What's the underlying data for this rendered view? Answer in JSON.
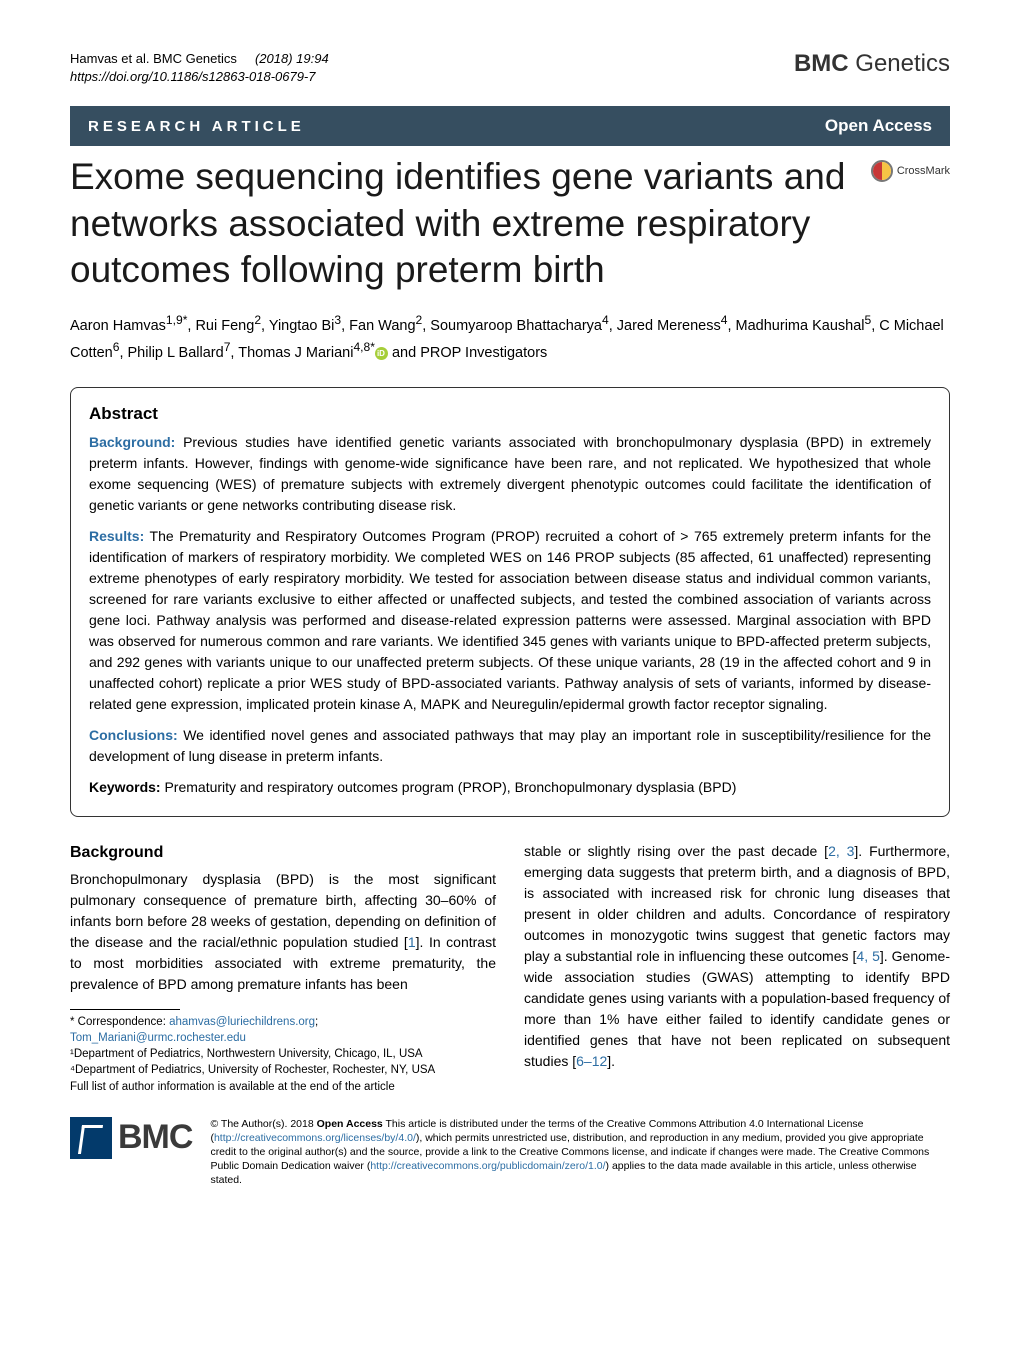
{
  "header": {
    "citation_authors": "Hamvas et al. BMC Genetics",
    "citation_year_vol": "(2018) 19:94",
    "doi": "https://doi.org/10.1186/s12863-018-0679-7",
    "journal_prefix": "BMC",
    "journal_name": "Genetics"
  },
  "article_type_bar": {
    "label": "RESEARCH ARTICLE",
    "open_access": "Open Access",
    "bar_bg": "#364e60",
    "bar_fg": "#ffffff"
  },
  "crossmark_label": "CrossMark",
  "title": "Exome sequencing identifies gene variants and networks associated with extreme respiratory outcomes following preterm birth",
  "authors_html": "Aaron Hamvas<sup>1,9*</sup>, Rui Feng<sup>2</sup>, Yingtao Bi<sup>3</sup>, Fan Wang<sup>2</sup>, Soumyaroop Bhattacharya<sup>4</sup>, Jared Mereness<sup>4</sup>, Madhurima Kaushal<sup>5</sup>, C Michael Cotten<sup>6</sup>, Philip L Ballard<sup>7</sup>, Thomas J Mariani<sup>4,8*</sup><span class=\"orcid\"></span> and PROP Investigators",
  "abstract": {
    "heading": "Abstract",
    "background_label": "Background:",
    "background": "Previous studies have identified genetic variants associated with bronchopulmonary dysplasia (BPD) in extremely preterm infants. However, findings with genome-wide significance have been rare, and not replicated. We hypothesized that whole exome sequencing (WES) of premature subjects with extremely divergent phenotypic outcomes could facilitate the identification of genetic variants or gene networks contributing disease risk.",
    "results_label": "Results:",
    "results": "The Prematurity and Respiratory Outcomes Program (PROP) recruited a cohort of > 765 extremely preterm infants for the identification of markers of respiratory morbidity. We completed WES on 146 PROP subjects (85 affected, 61 unaffected) representing extreme phenotypes of early respiratory morbidity. We tested for association between disease status and individual common variants, screened for rare variants exclusive to either affected or unaffected subjects, and tested the combined association of variants across gene loci. Pathway analysis was performed and disease-related expression patterns were assessed. Marginal association with BPD was observed for numerous common and rare variants. We identified 345 genes with variants unique to BPD-affected preterm subjects, and 292 genes with variants unique to our unaffected preterm subjects. Of these unique variants, 28 (19 in the affected cohort and 9 in unaffected cohort) replicate a prior WES study of BPD-associated variants. Pathway analysis of sets of variants, informed by disease-related gene expression, implicated protein kinase A, MAPK and Neuregulin/epidermal growth factor receptor signaling.",
    "conclusions_label": "Conclusions:",
    "conclusions": "We identified novel genes and associated pathways that may play an important role in susceptibility/resilience for the development of lung disease in preterm infants.",
    "keywords_label": "Keywords:",
    "keywords": "Prematurity and respiratory outcomes program (PROP), Bronchopulmonary dysplasia (BPD)"
  },
  "background_section": {
    "heading": "Background",
    "col1": "Bronchopulmonary dysplasia (BPD) is the most significant pulmonary consequence of premature birth, affecting 30–60% of infants born before 28 weeks of gestation, depending on definition of the disease and the racial/ethnic population studied [1]. In contrast to most morbidities associated with extreme prematurity, the prevalence of BPD among premature infants has been",
    "col2": "stable or slightly rising over the past decade [2, 3]. Furthermore, emerging data suggests that preterm birth, and a diagnosis of BPD, is associated with increased risk for chronic lung diseases that present in older children and adults. Concordance of respiratory outcomes in monozygotic twins suggest that genetic factors may play a substantial role in influencing these outcomes [4, 5]. Genome-wide association studies (GWAS) attempting to identify BPD candidate genes using variants with a population-based frequency of more than 1% have either failed to identify candidate genes or identified genes that have not been replicated on subsequent studies [6–12]."
  },
  "footnotes": {
    "correspondence_label": "* Correspondence:",
    "email1": "ahamvas@luriechildrens.org",
    "email2": "Tom_Mariani@urmc.rochester.edu",
    "aff1": "¹Department of Pediatrics, Northwestern University, Chicago, IL, USA",
    "aff4": "⁴Department of Pediatrics, University of Rochester, Rochester, NY, USA",
    "full_list": "Full list of author information is available at the end of the article"
  },
  "license": {
    "logo_text": "BMC",
    "text_html": "© The Author(s). 2018 <b>Open Access</b> This article is distributed under the terms of the Creative Commons Attribution 4.0 International License (<a>http://creativecommons.org/licenses/by/4.0/</a>), which permits unrestricted use, distribution, and reproduction in any medium, provided you give appropriate credit to the original author(s) and the source, provide a link to the Creative Commons license, and indicate if changes were made. The Creative Commons Public Domain Dedication waiver (<a>http://creativecommons.org/publicdomain/zero/1.0/</a>) applies to the data made available in this article, unless otherwise stated."
  },
  "colors": {
    "link": "#2c6da3",
    "bar_bg": "#364e60",
    "orcid": "#a6ce39",
    "bmc_blue": "#033a6b"
  }
}
